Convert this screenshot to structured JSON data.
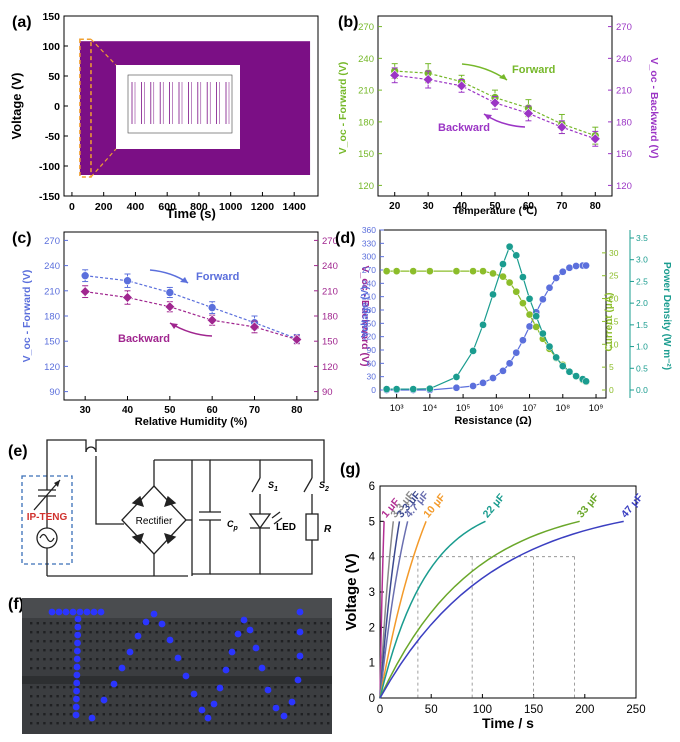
{
  "panel_labels": [
    "(a)",
    "(b)",
    "(c)",
    "(d)",
    "(e)",
    "(f)",
    "(g)"
  ],
  "colors": {
    "purple": "#7b0f85",
    "green": "#76b82a",
    "violet": "#9b35c5",
    "blue": "#5b6fdc",
    "magenta": "#a0268f",
    "teal": "#1a9c8f",
    "olive": "#8cbd2a",
    "orange": "#f39a2a",
    "dashed_orange": "#f0a030",
    "circuit": "#222222",
    "dashbox": "#3a6fb8",
    "teng_text": "#d0312d",
    "led_blue": "#2b35ff",
    "board": "#3b3d40"
  },
  "chart_data": [
    {
      "id": "a",
      "type": "area",
      "xlabel": "Time (s)",
      "ylabel": "Voltage (V)",
      "xlim": [
        -50,
        1550
      ],
      "ylim": [
        -150,
        150
      ],
      "xticks": [
        0,
        200,
        400,
        600,
        800,
        1000,
        1200,
        1400
      ],
      "yticks": [
        -150,
        -100,
        -50,
        0,
        50,
        100,
        150
      ],
      "band": {
        "x_start": 50,
        "x_end": 1500,
        "y_min": -115,
        "y_max": 108
      },
      "highlight": {
        "x_start": 50,
        "x_end": 120
      }
    },
    {
      "id": "b",
      "type": "line",
      "xlabel": "Temperature (℃)",
      "ylabel_left": "V_oc - Forward (V)",
      "ylabel_right": "V_oc - Backward (V)",
      "xlim": [
        15,
        85
      ],
      "ylim": [
        110,
        280
      ],
      "xticks": [
        20,
        30,
        40,
        50,
        60,
        70,
        80
      ],
      "yticks": [
        120,
        150,
        180,
        210,
        240,
        270
      ],
      "x": [
        20,
        30,
        40,
        50,
        60,
        70,
        80
      ],
      "series": [
        {
          "name": "Forward",
          "values": [
            228,
            226,
            218,
            203,
            193,
            178,
            167
          ],
          "error": [
            7,
            9,
            6,
            7,
            8,
            9,
            8
          ]
        },
        {
          "name": "Backward",
          "values": [
            224,
            220,
            214,
            198,
            188,
            175,
            164
          ],
          "error": [
            7,
            8,
            6,
            6,
            7,
            6,
            7
          ]
        }
      ],
      "annotations": [
        "Forward",
        "Backward"
      ]
    },
    {
      "id": "c",
      "type": "line",
      "xlabel": "Relative Humidity (%)",
      "ylabel_left": "V_oc - Forward (V)",
      "ylabel_right": "V_oc - Backward (V)",
      "xlim": [
        25,
        85
      ],
      "ylim": [
        80,
        280
      ],
      "xticks": [
        30,
        40,
        50,
        60,
        70,
        80
      ],
      "yticks": [
        90,
        120,
        150,
        180,
        210,
        240,
        270
      ],
      "x": [
        30,
        40,
        50,
        60,
        70,
        80
      ],
      "series": [
        {
          "name": "Forward",
          "values": [
            228,
            222,
            208,
            190,
            172,
            153
          ],
          "error": [
            7,
            8,
            6,
            7,
            8,
            5
          ]
        },
        {
          "name": "Backward",
          "values": [
            209,
            202,
            191,
            175,
            167,
            152
          ],
          "error": [
            7,
            8,
            6,
            6,
            7,
            5
          ]
        }
      ],
      "annotations": [
        "Forward",
        "Backward"
      ]
    },
    {
      "id": "d",
      "type": "line",
      "xlabel": "Resistance (Ω)",
      "ylabel_left": "Voltage (V)",
      "ylabel_mid": "Current (μA)",
      "ylabel_right": "Power Density (W m⁻²)",
      "xscale": "log",
      "xlim": [
        2.5,
        9.3
      ],
      "xticks": [
        "10³",
        "10⁴",
        "10⁵",
        "10⁶",
        "10⁷",
        "10⁸",
        "10⁹"
      ],
      "voltage_ticks": [
        0,
        30,
        60,
        90,
        120,
        150,
        180,
        210,
        240,
        270,
        300,
        330,
        360
      ],
      "current_ticks": [
        0,
        5,
        10,
        15,
        20,
        25,
        30
      ],
      "power_ticks": [
        0.0,
        0.5,
        1.0,
        1.5,
        2.0,
        2.5,
        3.0,
        3.5
      ],
      "log_x": [
        2.7,
        3.0,
        3.5,
        4.0,
        4.8,
        5.3,
        5.6,
        5.9,
        6.2,
        6.4,
        6.6,
        6.8,
        7.0,
        7.2,
        7.4,
        7.6,
        7.8,
        8.0,
        8.2,
        8.4,
        8.6,
        8.7
      ],
      "series": [
        {
          "name": "Voltage",
          "axis": "left",
          "values": [
            0,
            0,
            0,
            0,
            5,
            9,
            16,
            27,
            43,
            60,
            84,
            112,
            143,
            175,
            204,
            230,
            252,
            266,
            275,
            279,
            280,
            280
          ]
        },
        {
          "name": "Current",
          "axis": "middle",
          "values": [
            26,
            26,
            26,
            26,
            26,
            26,
            26,
            25.5,
            24.8,
            23.5,
            21.5,
            19,
            16.5,
            13.8,
            11.2,
            9,
            7,
            5.5,
            4,
            3,
            2.2,
            1.8
          ]
        },
        {
          "name": "Power Density",
          "axis": "right",
          "values": [
            0.02,
            0.02,
            0.02,
            0.03,
            0.3,
            0.9,
            1.5,
            2.2,
            2.9,
            3.3,
            3.1,
            2.6,
            2.1,
            1.7,
            1.3,
            1.0,
            0.75,
            0.55,
            0.42,
            0.32,
            0.25,
            0.2
          ]
        }
      ]
    },
    {
      "id": "g",
      "type": "line",
      "xlabel": "Time / s",
      "ylabel": "Voltage (V)",
      "xlim": [
        0,
        250
      ],
      "ylim": [
        0,
        6
      ],
      "xticks": [
        0,
        50,
        100,
        150,
        200,
        250
      ],
      "yticks": [
        0,
        1,
        2,
        3,
        4,
        5,
        6
      ],
      "series": [
        {
          "name": "1 μF",
          "end_time": 4,
          "end_voltage": 5.0
        },
        {
          "name": "3.3 μF",
          "end_time": 13,
          "end_voltage": 5.0
        },
        {
          "name": "3.3 μF",
          "end_time": 19,
          "end_voltage": 5.0
        },
        {
          "name": "4.7 μF",
          "end_time": 27,
          "end_voltage": 5.0
        },
        {
          "name": "10 μF",
          "end_time": 45,
          "end_voltage": 5.0
        },
        {
          "name": "22 μF",
          "end_time": 103,
          "end_voltage": 5.0
        },
        {
          "name": "33 μF",
          "end_time": 195,
          "end_voltage": 5.0
        },
        {
          "name": "47 μF",
          "end_time": 238,
          "end_voltage": 5.0
        }
      ],
      "reference_voltage": 4,
      "reference_times": [
        37,
        90,
        150,
        190
      ]
    }
  ],
  "circuit": {
    "source": "IP-TENG",
    "rectifier": "Rectifier",
    "capacitor": "C",
    "capacitor_sub": "p",
    "switch1": "S",
    "switch1_sub": "1",
    "switch2": "S",
    "switch2_sub": "2",
    "led": "LED",
    "resistor": "R"
  },
  "photo": {
    "led_text": "TIV",
    "description": "LED array lit on breadboard"
  }
}
